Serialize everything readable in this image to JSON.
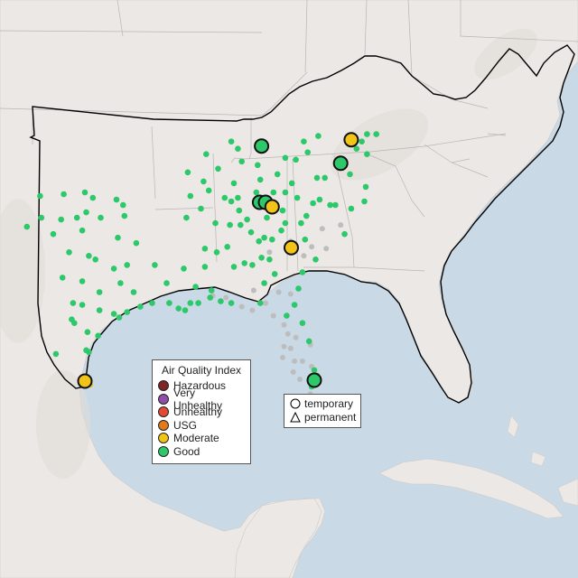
{
  "colors": {
    "ocean": "#c9d9e6",
    "land": "#ece9e6",
    "usa_land": "#ebe8e6",
    "mexico_land": "#ebe9e4",
    "hazardous": "#7e2525",
    "very_unhealthy": "#8f4fa8",
    "unhealthy": "#e34a33",
    "usg": "#e07a1a",
    "moderate": "#f2c418",
    "good": "#2dc86a",
    "gray_station": "#bdbdbd"
  },
  "legend": {
    "title": "Air Quality Index",
    "items": [
      {
        "label": "Hazardous",
        "color": "#7e2525"
      },
      {
        "label": "Very Unhealthy",
        "color": "#8f4fa8"
      },
      {
        "label": "Unhealthy",
        "color": "#e34a33"
      },
      {
        "label": "USG",
        "color": "#e07a1a"
      },
      {
        "label": "Moderate",
        "color": "#f2c418"
      },
      {
        "label": "Good",
        "color": "#2dc86a"
      }
    ]
  },
  "shape_legend": {
    "temporary": "temporary",
    "permanent": "permanent"
  },
  "monitors": {
    "large": [
      {
        "lon": -84.2,
        "lat": 39.05,
        "aqi": "good"
      },
      {
        "lon": -77.4,
        "lat": 39.4,
        "aqi": "moderate"
      },
      {
        "lon": -78.2,
        "lat": 38.1,
        "aqi": "good"
      },
      {
        "lon": -84.35,
        "lat": 35.95,
        "aqi": "good"
      },
      {
        "lon": -83.9,
        "lat": 35.95,
        "aqi": "good"
      },
      {
        "lon": -83.4,
        "lat": 35.7,
        "aqi": "moderate"
      },
      {
        "lon": -81.95,
        "lat": 33.45,
        "aqi": "moderate"
      },
      {
        "lon": -80.2,
        "lat": 26.15,
        "aqi": "good"
      },
      {
        "lon": -97.6,
        "lat": 26.1,
        "aqi": "moderate"
      }
    ],
    "small_good": [
      [
        -101.0,
        36.3
      ],
      [
        -99.2,
        36.4
      ],
      [
        -97.6,
        36.5
      ],
      [
        -97.0,
        36.2
      ],
      [
        -95.2,
        36.1
      ],
      [
        -94.7,
        35.8
      ],
      [
        -100.9,
        35.1
      ],
      [
        -99.4,
        35.0
      ],
      [
        -98.2,
        35.1
      ],
      [
        -97.5,
        35.4
      ],
      [
        -96.4,
        35.1
      ],
      [
        -94.6,
        35.2
      ],
      [
        -102.0,
        34.6
      ],
      [
        -100.0,
        34.2
      ],
      [
        -97.8,
        34.4
      ],
      [
        -95.1,
        34.0
      ],
      [
        -93.7,
        33.7
      ],
      [
        -98.8,
        33.2
      ],
      [
        -97.3,
        33.0
      ],
      [
        -96.8,
        32.8
      ],
      [
        -95.4,
        32.3
      ],
      [
        -94.4,
        32.5
      ],
      [
        -99.3,
        31.8
      ],
      [
        -97.8,
        31.6
      ],
      [
        -96.5,
        31.0
      ],
      [
        -94.9,
        31.5
      ],
      [
        -93.9,
        31.0
      ],
      [
        -98.5,
        30.4
      ],
      [
        -97.8,
        30.3
      ],
      [
        -96.5,
        30.0
      ],
      [
        -95.4,
        29.8
      ],
      [
        -95.0,
        29.6
      ],
      [
        -94.4,
        29.9
      ],
      [
        -98.6,
        29.5
      ],
      [
        -98.4,
        29.3
      ],
      [
        -97.4,
        28.8
      ],
      [
        -96.6,
        28.6
      ],
      [
        -99.8,
        27.6
      ],
      [
        -97.5,
        27.8
      ],
      [
        -97.3,
        27.7
      ],
      [
        -93.4,
        30.2
      ],
      [
        -92.5,
        30.4
      ],
      [
        -91.2,
        30.4
      ],
      [
        -90.5,
        30.1
      ],
      [
        -90.0,
        30.0
      ],
      [
        -89.6,
        30.4
      ],
      [
        -89.0,
        30.4
      ],
      [
        -88.1,
        30.7
      ],
      [
        -87.3,
        30.5
      ],
      [
        -86.5,
        30.4
      ],
      [
        -92.3,
        32.5
      ],
      [
        -91.4,
        31.5
      ],
      [
        -90.1,
        32.3
      ],
      [
        -89.2,
        31.3
      ],
      [
        -88.5,
        32.4
      ],
      [
        -88.0,
        31.1
      ],
      [
        -88.5,
        33.4
      ],
      [
        -86.8,
        33.5
      ],
      [
        -87.6,
        33.2
      ],
      [
        -86.3,
        32.4
      ],
      [
        -85.5,
        32.6
      ],
      [
        -85.8,
        34.7
      ],
      [
        -86.6,
        34.7
      ],
      [
        -87.7,
        34.8
      ],
      [
        -89.9,
        35.1
      ],
      [
        -88.8,
        35.6
      ],
      [
        -88.2,
        36.6
      ],
      [
        -89.6,
        36.3
      ],
      [
        -87.0,
        36.2
      ],
      [
        -86.5,
        36.0
      ],
      [
        -86.0,
        36.2
      ],
      [
        -85.3,
        35.0
      ],
      [
        -85.0,
        34.3
      ],
      [
        -84.4,
        33.8
      ],
      [
        -84.0,
        34.0
      ],
      [
        -83.4,
        33.9
      ],
      [
        -84.2,
        32.9
      ],
      [
        -83.6,
        32.8
      ],
      [
        -84.9,
        32.5
      ],
      [
        -83.2,
        32.0
      ],
      [
        -84.3,
        30.4
      ],
      [
        -84.0,
        31.5
      ],
      [
        -82.3,
        29.7
      ],
      [
        -81.7,
        30.3
      ],
      [
        -81.4,
        31.2
      ],
      [
        -81.1,
        32.1
      ],
      [
        -80.1,
        32.8
      ],
      [
        -80.9,
        33.9
      ],
      [
        -81.2,
        34.8
      ],
      [
        -82.4,
        34.8
      ],
      [
        -82.7,
        34.4
      ],
      [
        -80.8,
        35.2
      ],
      [
        -80.3,
        35.9
      ],
      [
        -79.0,
        35.8
      ],
      [
        -78.6,
        35.8
      ],
      [
        -79.8,
        36.1
      ],
      [
        -77.9,
        34.2
      ],
      [
        -77.4,
        35.6
      ],
      [
        -76.4,
        36.0
      ],
      [
        -76.3,
        36.8
      ],
      [
        -77.5,
        37.5
      ],
      [
        -79.4,
        37.3
      ],
      [
        -80.0,
        37.3
      ],
      [
        -81.9,
        37.0
      ],
      [
        -81.6,
        38.3
      ],
      [
        -82.4,
        38.4
      ],
      [
        -80.7,
        38.7
      ],
      [
        -81.0,
        39.3
      ],
      [
        -79.9,
        39.6
      ],
      [
        -77.0,
        38.9
      ],
      [
        -76.6,
        39.3
      ],
      [
        -76.2,
        38.6
      ],
      [
        -75.5,
        39.7
      ],
      [
        -76.2,
        39.7
      ],
      [
        -84.5,
        38.0
      ],
      [
        -85.7,
        38.2
      ],
      [
        -84.3,
        37.2
      ],
      [
        -83.0,
        37.5
      ],
      [
        -86.3,
        37.0
      ],
      [
        -87.5,
        37.8
      ],
      [
        -88.6,
        37.1
      ],
      [
        -84.6,
        36.5
      ],
      [
        -83.3,
        36.5
      ],
      [
        -82.4,
        36.5
      ],
      [
        -81.5,
        36.2
      ],
      [
        -82.6,
        35.5
      ],
      [
        -83.8,
        35.1
      ],
      [
        -85.9,
        35.5
      ],
      [
        -80.2,
        26.7
      ],
      [
        -80.0,
        26.4
      ],
      [
        -80.4,
        25.8
      ],
      [
        -81.1,
        29.3
      ],
      [
        -80.6,
        28.3
      ],
      [
        -86.0,
        38.9
      ],
      [
        -86.5,
        39.3
      ],
      [
        -88.4,
        38.6
      ],
      [
        -89.8,
        37.6
      ]
    ],
    "small_gray": [
      [
        -87.9,
        30.8
      ],
      [
        -86.9,
        30.7
      ],
      [
        -85.7,
        30.2
      ],
      [
        -84.9,
        30.0
      ],
      [
        -83.9,
        30.4
      ],
      [
        -83.3,
        29.7
      ],
      [
        -82.5,
        29.2
      ],
      [
        -82.2,
        28.7
      ],
      [
        -82.5,
        28.0
      ],
      [
        -82.0,
        27.9
      ],
      [
        -82.6,
        27.4
      ],
      [
        -81.8,
        26.6
      ],
      [
        -81.3,
        26.2
      ],
      [
        -81.6,
        28.5
      ],
      [
        -81.1,
        27.2
      ],
      [
        -80.4,
        26.9
      ],
      [
        -81.4,
        24.8
      ],
      [
        -80.5,
        25.4
      ],
      [
        -82.0,
        33.8
      ],
      [
        -81.0,
        33.0
      ],
      [
        -80.4,
        33.5
      ],
      [
        -79.3,
        33.4
      ],
      [
        -79.6,
        34.5
      ],
      [
        -78.2,
        34.7
      ],
      [
        -83.6,
        33.2
      ],
      [
        -84.8,
        31.1
      ],
      [
        -82.9,
        31.0
      ],
      [
        -82.0,
        30.9
      ],
      [
        -80.5,
        28.1
      ],
      [
        -81.7,
        27.2
      ]
    ],
    "small_moderate": [
      [
        -97.2,
        25.9
      ]
    ]
  }
}
